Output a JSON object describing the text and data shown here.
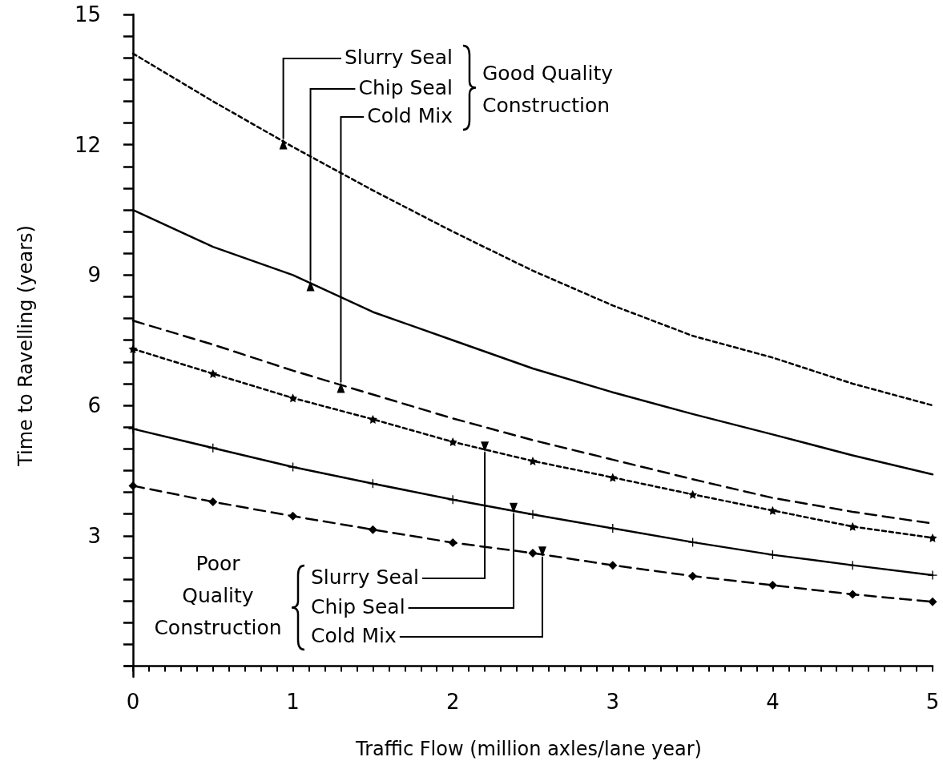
{
  "chart_data": {
    "type": "line",
    "xlabel": "Traffic Flow (million axles/lane year)",
    "ylabel": "Time to Ravelling (years)",
    "annotations": [
      "Good Quality Construction",
      "Poor Quality Construction"
    ],
    "x": [
      0,
      0.5,
      1,
      1.5,
      2,
      2.5,
      3,
      3.5,
      4,
      4.5,
      5
    ],
    "xlim": [
      -0.05,
      5
    ],
    "xticks": [
      0,
      {
        "value": 0.1,
        "label": null
      },
      {
        "value": 0.2,
        "label": null
      },
      {
        "value": 0.3,
        "label": null
      },
      {
        "value": 0.4,
        "label": null
      },
      {
        "value": 0.5,
        "label": null
      },
      {
        "value": 0.6,
        "label": null
      },
      {
        "value": 0.7,
        "label": null
      },
      {
        "value": 0.8,
        "label": null
      },
      {
        "value": 0.9,
        "label": null
      },
      1,
      {
        "value": 1.1,
        "label": null
      },
      {
        "value": 1.2,
        "label": null
      },
      {
        "value": 1.3,
        "label": null
      },
      {
        "value": 1.4,
        "label": null
      },
      {
        "value": 1.5,
        "label": null
      },
      {
        "value": 1.6,
        "label": null
      },
      {
        "value": 1.7,
        "label": null
      },
      {
        "value": 1.8,
        "label": null
      },
      {
        "value": 1.9,
        "label": null
      },
      2,
      {
        "value": 2.1,
        "label": null
      },
      {
        "value": 2.2,
        "label": null
      },
      {
        "value": 2.3,
        "label": null
      },
      {
        "value": 2.4,
        "label": null
      },
      {
        "value": 2.5,
        "label": null
      },
      {
        "value": 2.6,
        "label": null
      },
      {
        "value": 2.7,
        "label": null
      },
      {
        "value": 2.8,
        "label": null
      },
      {
        "value": 2.9,
        "label": null
      },
      3,
      {
        "value": 3.1,
        "label": null
      },
      {
        "value": 3.2,
        "label": null
      },
      {
        "value": 3.3,
        "label": null
      },
      {
        "value": 3.4,
        "label": null
      },
      {
        "value": 3.5,
        "label": null
      },
      {
        "value": 3.6,
        "label": null
      },
      {
        "value": 3.7,
        "label": null
      },
      {
        "value": 3.8,
        "label": null
      },
      {
        "value": 3.9,
        "label": null
      },
      4,
      {
        "value": 4.1,
        "label": null
      },
      {
        "value": 4.2,
        "label": null
      },
      {
        "value": 4.3,
        "label": null
      },
      {
        "value": 4.4,
        "label": null
      },
      {
        "value": 4.5,
        "label": null
      },
      {
        "value": 4.6,
        "label": null
      },
      {
        "value": 4.7,
        "label": null
      },
      {
        "value": 4.8,
        "label": null
      },
      {
        "value": 4.9,
        "label": null
      },
      5
    ],
    "ylim": [
      -0.25,
      15
    ],
    "yticks": [
      {
        "value": 0,
        "label": null
      },
      {
        "value": 0.5,
        "label": null
      },
      {
        "value": 1,
        "label": null
      },
      {
        "value": 1.5,
        "label": null
      },
      {
        "value": 2,
        "label": null
      },
      {
        "value": 2.5,
        "label": null
      },
      3,
      {
        "value": 3.5,
        "label": null
      },
      {
        "value": 4,
        "label": null
      },
      {
        "value": 4.5,
        "label": null
      },
      {
        "value": 5,
        "label": null
      },
      {
        "value": 5.5,
        "label": null
      },
      6,
      {
        "value": 6.5,
        "label": null
      },
      {
        "value": 7,
        "label": null
      },
      {
        "value": 7.5,
        "label": null
      },
      {
        "value": 8,
        "label": null
      },
      {
        "value": 8.5,
        "label": null
      },
      9,
      {
        "value": 9.5,
        "label": null
      },
      {
        "value": 10,
        "label": null
      },
      {
        "value": 10.5,
        "label": null
      },
      {
        "value": 11,
        "label": null
      },
      {
        "value": 11.5,
        "label": null
      },
      12,
      {
        "value": 12.5,
        "label": null
      },
      {
        "value": 13,
        "label": null
      },
      {
        "value": 13.5,
        "label": null
      },
      {
        "value": 14,
        "label": null
      },
      {
        "value": 14.5,
        "label": null
      },
      15
    ],
    "legend": false,
    "series": [
      {
        "name": "Slurry Seal",
        "color": "#000000",
        "marker": "none",
        "line_style": "dotted",
        "values": [
          14.1,
          13.0,
          11.95,
          10.95,
          10.0,
          9.1,
          8.3,
          7.6,
          7.1,
          6.5,
          6.0
        ]
      },
      {
        "name": "Chip Seal",
        "color": "#000000",
        "marker": "none",
        "line_style": "solid",
        "values": [
          10.5,
          9.65,
          9.0,
          8.15,
          7.5,
          6.85,
          6.3,
          5.8,
          5.33,
          4.85,
          4.41
        ]
      },
      {
        "name": "Cold Mix",
        "color": "#000000",
        "marker": "none",
        "line_style": "dashed",
        "values": [
          7.95,
          7.4,
          6.8,
          6.25,
          5.7,
          5.2,
          4.75,
          4.3,
          3.87,
          3.55,
          3.28
        ]
      },
      {
        "name": "Slurry Seal",
        "color": "#000000",
        "marker": "star",
        "line_style": "dotted",
        "values": [
          7.3,
          6.73,
          6.17,
          5.68,
          5.16,
          4.72,
          4.34,
          3.95,
          3.58,
          3.21,
          2.95
        ]
      },
      {
        "name": "Chip Seal",
        "color": "#000000",
        "marker": "cross",
        "line_style": "solid",
        "values": [
          5.46,
          5.02,
          4.58,
          4.2,
          3.83,
          3.49,
          3.17,
          2.85,
          2.56,
          2.32,
          2.09
        ]
      },
      {
        "name": "Cold Mix",
        "color": "#000000",
        "marker": "diamond",
        "line_style": "dashed",
        "values": [
          4.15,
          3.78,
          3.45,
          3.14,
          2.84,
          2.6,
          2.32,
          2.07,
          1.86,
          1.65,
          1.48
        ]
      }
    ]
  }
}
